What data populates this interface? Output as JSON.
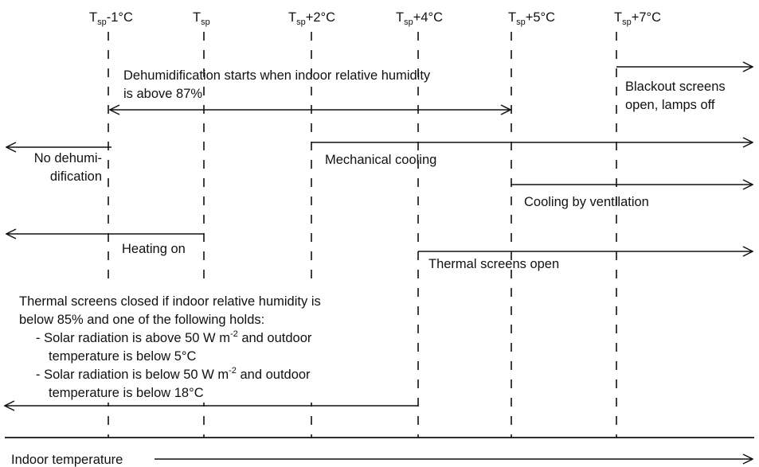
{
  "thresholds": [
    {
      "base": "T",
      "sub": "sp",
      "suffix": "-1°C"
    },
    {
      "base": "T",
      "sub": "sp",
      "suffix": ""
    },
    {
      "base": "T",
      "sub": "sp",
      "suffix": "+2°C"
    },
    {
      "base": "T",
      "sub": "sp",
      "suffix": "+4°C"
    },
    {
      "base": "T",
      "sub": "sp",
      "suffix": "+5°C"
    },
    {
      "base": "T",
      "sub": "sp",
      "suffix": "+7°C"
    }
  ],
  "labels": {
    "dehum_line1": "Dehumidification starts when indoor relative humidity",
    "dehum_line2": "is above 87%",
    "blackout_line1": "Blackout screens",
    "blackout_line2": "open, lamps off",
    "nodehum_line1": "No dehumi-",
    "nodehum_line2": "dification",
    "mech_cooling": "Mechanical cooling",
    "vent_cooling": "Cooling by ventilation",
    "heating_on": "Heating on",
    "screens_open": "Thermal screens open",
    "closed_line1": "Thermal screens closed if indoor relative humidity is",
    "closed_line2": "below 85% and one of the following holds:",
    "closed_line3a": "- Solar radiation is above 50 W m",
    "closed_line3sup": "-2",
    "closed_line3b": " and outdoor",
    "closed_line4": "temperature is below 5°C",
    "closed_line5a": "- Solar radiation is below 50 W m",
    "closed_line5sup": "-2",
    "closed_line5b": " and outdoor",
    "closed_line6": "temperature is below 18°C",
    "axis_label": "Indoor temperature"
  }
}
